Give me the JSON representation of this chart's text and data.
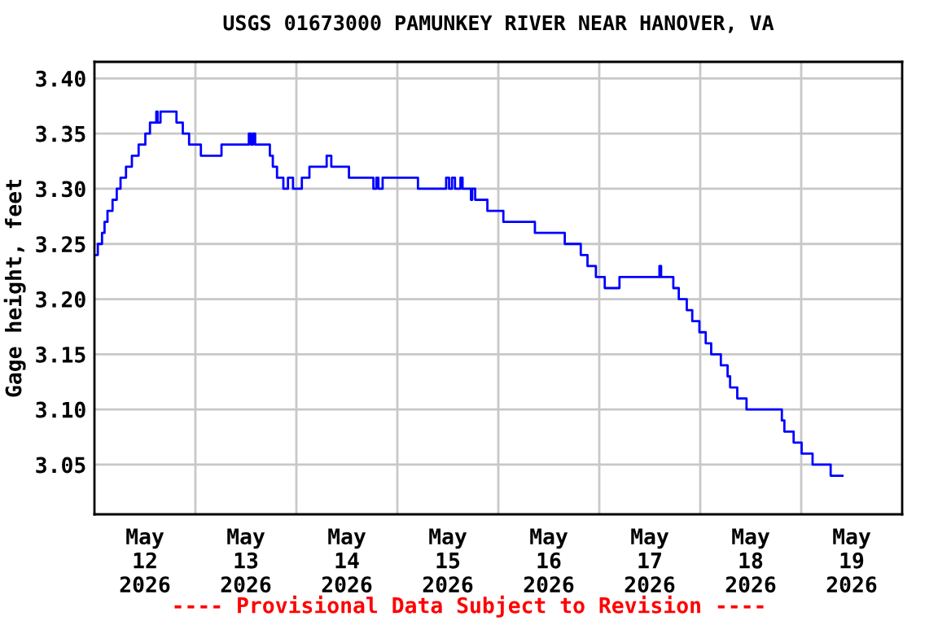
{
  "chart_data": {
    "type": "step",
    "title": "USGS 01673000 PAMUNKEY RIVER NEAR HANOVER, VA",
    "ylabel": "Gage height, feet",
    "x": [
      "2026-05-12T00:00",
      "2026-05-12T00:48",
      "2026-05-12T01:48",
      "2026-05-12T02:24",
      "2026-05-12T03:06",
      "2026-05-12T04:18",
      "2026-05-12T05:18",
      "2026-05-12T06:12",
      "2026-05-12T07:30",
      "2026-05-12T08:54",
      "2026-05-12T10:30",
      "2026-05-12T12:06",
      "2026-05-12T13:12",
      "2026-05-12T14:42",
      "2026-05-12T15:00",
      "2026-05-12T15:42",
      "2026-05-12T19:30",
      "2026-05-12T21:00",
      "2026-05-12T22:30",
      "2026-05-13T01:18",
      "2026-05-13T06:12",
      "2026-05-13T12:42",
      "2026-05-13T13:12",
      "2026-05-13T13:42",
      "2026-05-13T14:12",
      "2026-05-13T17:42",
      "2026-05-13T18:24",
      "2026-05-13T19:24",
      "2026-05-13T20:18",
      "2026-05-13T20:54",
      "2026-05-13T22:00",
      "2026-05-13T23:12",
      "2026-05-14T01:18",
      "2026-05-14T03:06",
      "2026-05-14T07:12",
      "2026-05-14T08:18",
      "2026-05-14T12:30",
      "2026-05-14T18:18",
      "2026-05-14T19:00",
      "2026-05-14T19:30",
      "2026-05-14T20:30",
      "2026-05-15T04:54",
      "2026-05-15T11:36",
      "2026-05-15T12:18",
      "2026-05-15T13:00",
      "2026-05-15T13:42",
      "2026-05-15T15:00",
      "2026-05-15T15:30",
      "2026-05-15T17:30",
      "2026-05-15T17:48",
      "2026-05-15T18:30",
      "2026-05-15T21:24",
      "2026-05-16T01:12",
      "2026-05-16T08:42",
      "2026-05-16T15:48",
      "2026-05-16T19:36",
      "2026-05-16T21:12",
      "2026-05-16T23:12",
      "2026-05-17T01:18",
      "2026-05-17T04:48",
      "2026-05-17T14:18",
      "2026-05-17T14:42",
      "2026-05-17T17:36",
      "2026-05-17T18:54",
      "2026-05-17T20:48",
      "2026-05-17T22:06",
      "2026-05-17T23:48",
      "2026-05-18T01:18",
      "2026-05-18T02:36",
      "2026-05-18T04:54",
      "2026-05-18T06:30",
      "2026-05-18T07:06",
      "2026-05-18T08:48",
      "2026-05-18T11:00",
      "2026-05-18T19:24",
      "2026-05-18T20:00",
      "2026-05-18T22:12",
      "2026-05-19T00:06",
      "2026-05-19T02:42",
      "2026-05-19T07:00",
      "2026-05-19T09:48"
    ],
    "series": [
      {
        "color": "#0000ff",
        "values": [
          3.24,
          3.25,
          3.26,
          3.27,
          3.28,
          3.29,
          3.3,
          3.31,
          3.32,
          3.33,
          3.34,
          3.35,
          3.36,
          3.37,
          3.36,
          3.37,
          3.36,
          3.35,
          3.34,
          3.33,
          3.34,
          3.35,
          3.34,
          3.35,
          3.34,
          3.33,
          3.32,
          3.31,
          3.31,
          3.3,
          3.31,
          3.3,
          3.31,
          3.32,
          3.33,
          3.32,
          3.31,
          3.3,
          3.31,
          3.3,
          3.31,
          3.3,
          3.31,
          3.3,
          3.31,
          3.3,
          3.31,
          3.3,
          3.29,
          3.3,
          3.29,
          3.28,
          3.27,
          3.26,
          3.25,
          3.24,
          3.23,
          3.22,
          3.21,
          3.22,
          3.23,
          3.22,
          3.21,
          3.2,
          3.19,
          3.18,
          3.17,
          3.16,
          3.15,
          3.14,
          3.13,
          3.12,
          3.11,
          3.1,
          3.09,
          3.08,
          3.07,
          3.06,
          3.05,
          3.04,
          3.04
        ]
      }
    ],
    "xlim": [
      "2026-05-12T00:00",
      "2026-05-20T00:00"
    ],
    "xticks": [
      {
        "value": "2026-05-13T00:00",
        "label": null
      },
      {
        "value": "2026-05-14T00:00",
        "label": null
      },
      {
        "value": "2026-05-15T00:00",
        "label": null
      },
      {
        "value": "2026-05-16T00:00",
        "label": null
      },
      {
        "value": "2026-05-17T00:00",
        "label": null
      },
      {
        "value": "2026-05-18T00:00",
        "label": null
      },
      {
        "value": "2026-05-19T00:00",
        "label": null
      },
      {
        "value": "2026-05-12T12:00",
        "label": "May\n12\n2026"
      },
      {
        "value": "2026-05-13T12:00",
        "label": "May\n13\n2026"
      },
      {
        "value": "2026-05-14T12:00",
        "label": "May\n14\n2026"
      },
      {
        "value": "2026-05-15T12:00",
        "label": "May\n15\n2026"
      },
      {
        "value": "2026-05-16T12:00",
        "label": "May\n16\n2026"
      },
      {
        "value": "2026-05-17T12:00",
        "label": "May\n17\n2026"
      },
      {
        "value": "2026-05-18T12:00",
        "label": "May\n18\n2026"
      },
      {
        "value": "2026-05-19T12:00",
        "label": "May\n19\n2026"
      }
    ],
    "ylim": [
      3.005,
      3.415
    ],
    "yticks": [
      {
        "value": 3.05,
        "label": "3.05"
      },
      {
        "value": 3.1,
        "label": "3.10"
      },
      {
        "value": 3.15,
        "label": "3.15"
      },
      {
        "value": 3.2,
        "label": "3.20"
      },
      {
        "value": 3.25,
        "label": "3.25"
      },
      {
        "value": 3.3,
        "label": "3.30"
      },
      {
        "value": 3.35,
        "label": "3.35"
      },
      {
        "value": 3.4,
        "label": "3.40"
      }
    ],
    "grid": true,
    "legend": false,
    "annotations": [
      "---- Provisional Data Subject to Revision ----"
    ]
  }
}
